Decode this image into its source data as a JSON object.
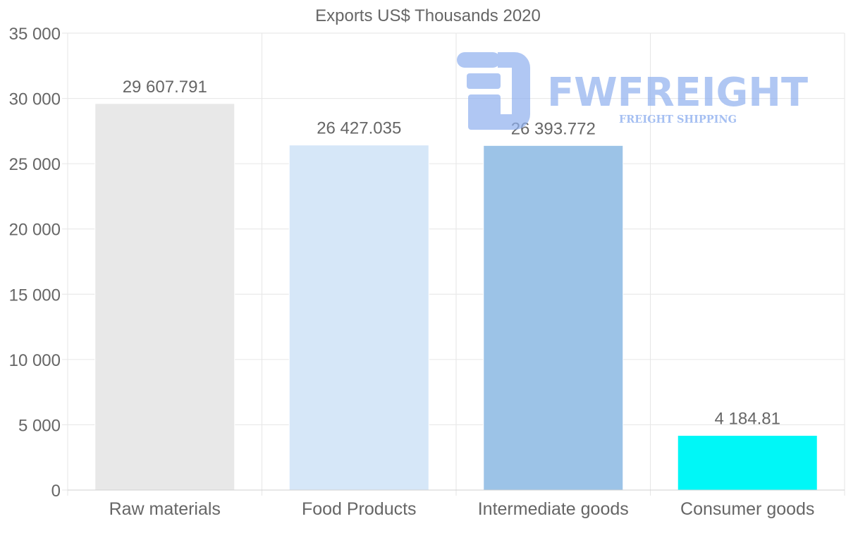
{
  "chart_data": {
    "type": "bar",
    "title": "Exports US$ Thousands 2020",
    "categories": [
      "Raw materials",
      "Food Products",
      "Intermediate goods",
      "Consumer goods"
    ],
    "values": [
      29607.791,
      26427.035,
      26393.772,
      4184.81
    ],
    "value_labels": [
      "29 607.791",
      "26 427.035",
      "26 393.772",
      "4 184.81"
    ],
    "bar_colors": [
      "#e8e8e8",
      "#d6e7f8",
      "#9cc3e7",
      "#00f7f7"
    ],
    "ylim": [
      0,
      35000
    ],
    "yticks": [
      0,
      5000,
      10000,
      15000,
      20000,
      25000,
      30000,
      35000
    ],
    "ytick_labels": [
      "0",
      "5 000",
      "10 000",
      "15 000",
      "20 000",
      "25 000",
      "30 000",
      "35 000"
    ],
    "xlabel": "",
    "ylabel": "",
    "grid": true,
    "legend": "none"
  },
  "watermark": {
    "brand": "FWFREIGHT",
    "tagline": "FREIGHT SHIPPING",
    "color": "#8fb0ef"
  }
}
